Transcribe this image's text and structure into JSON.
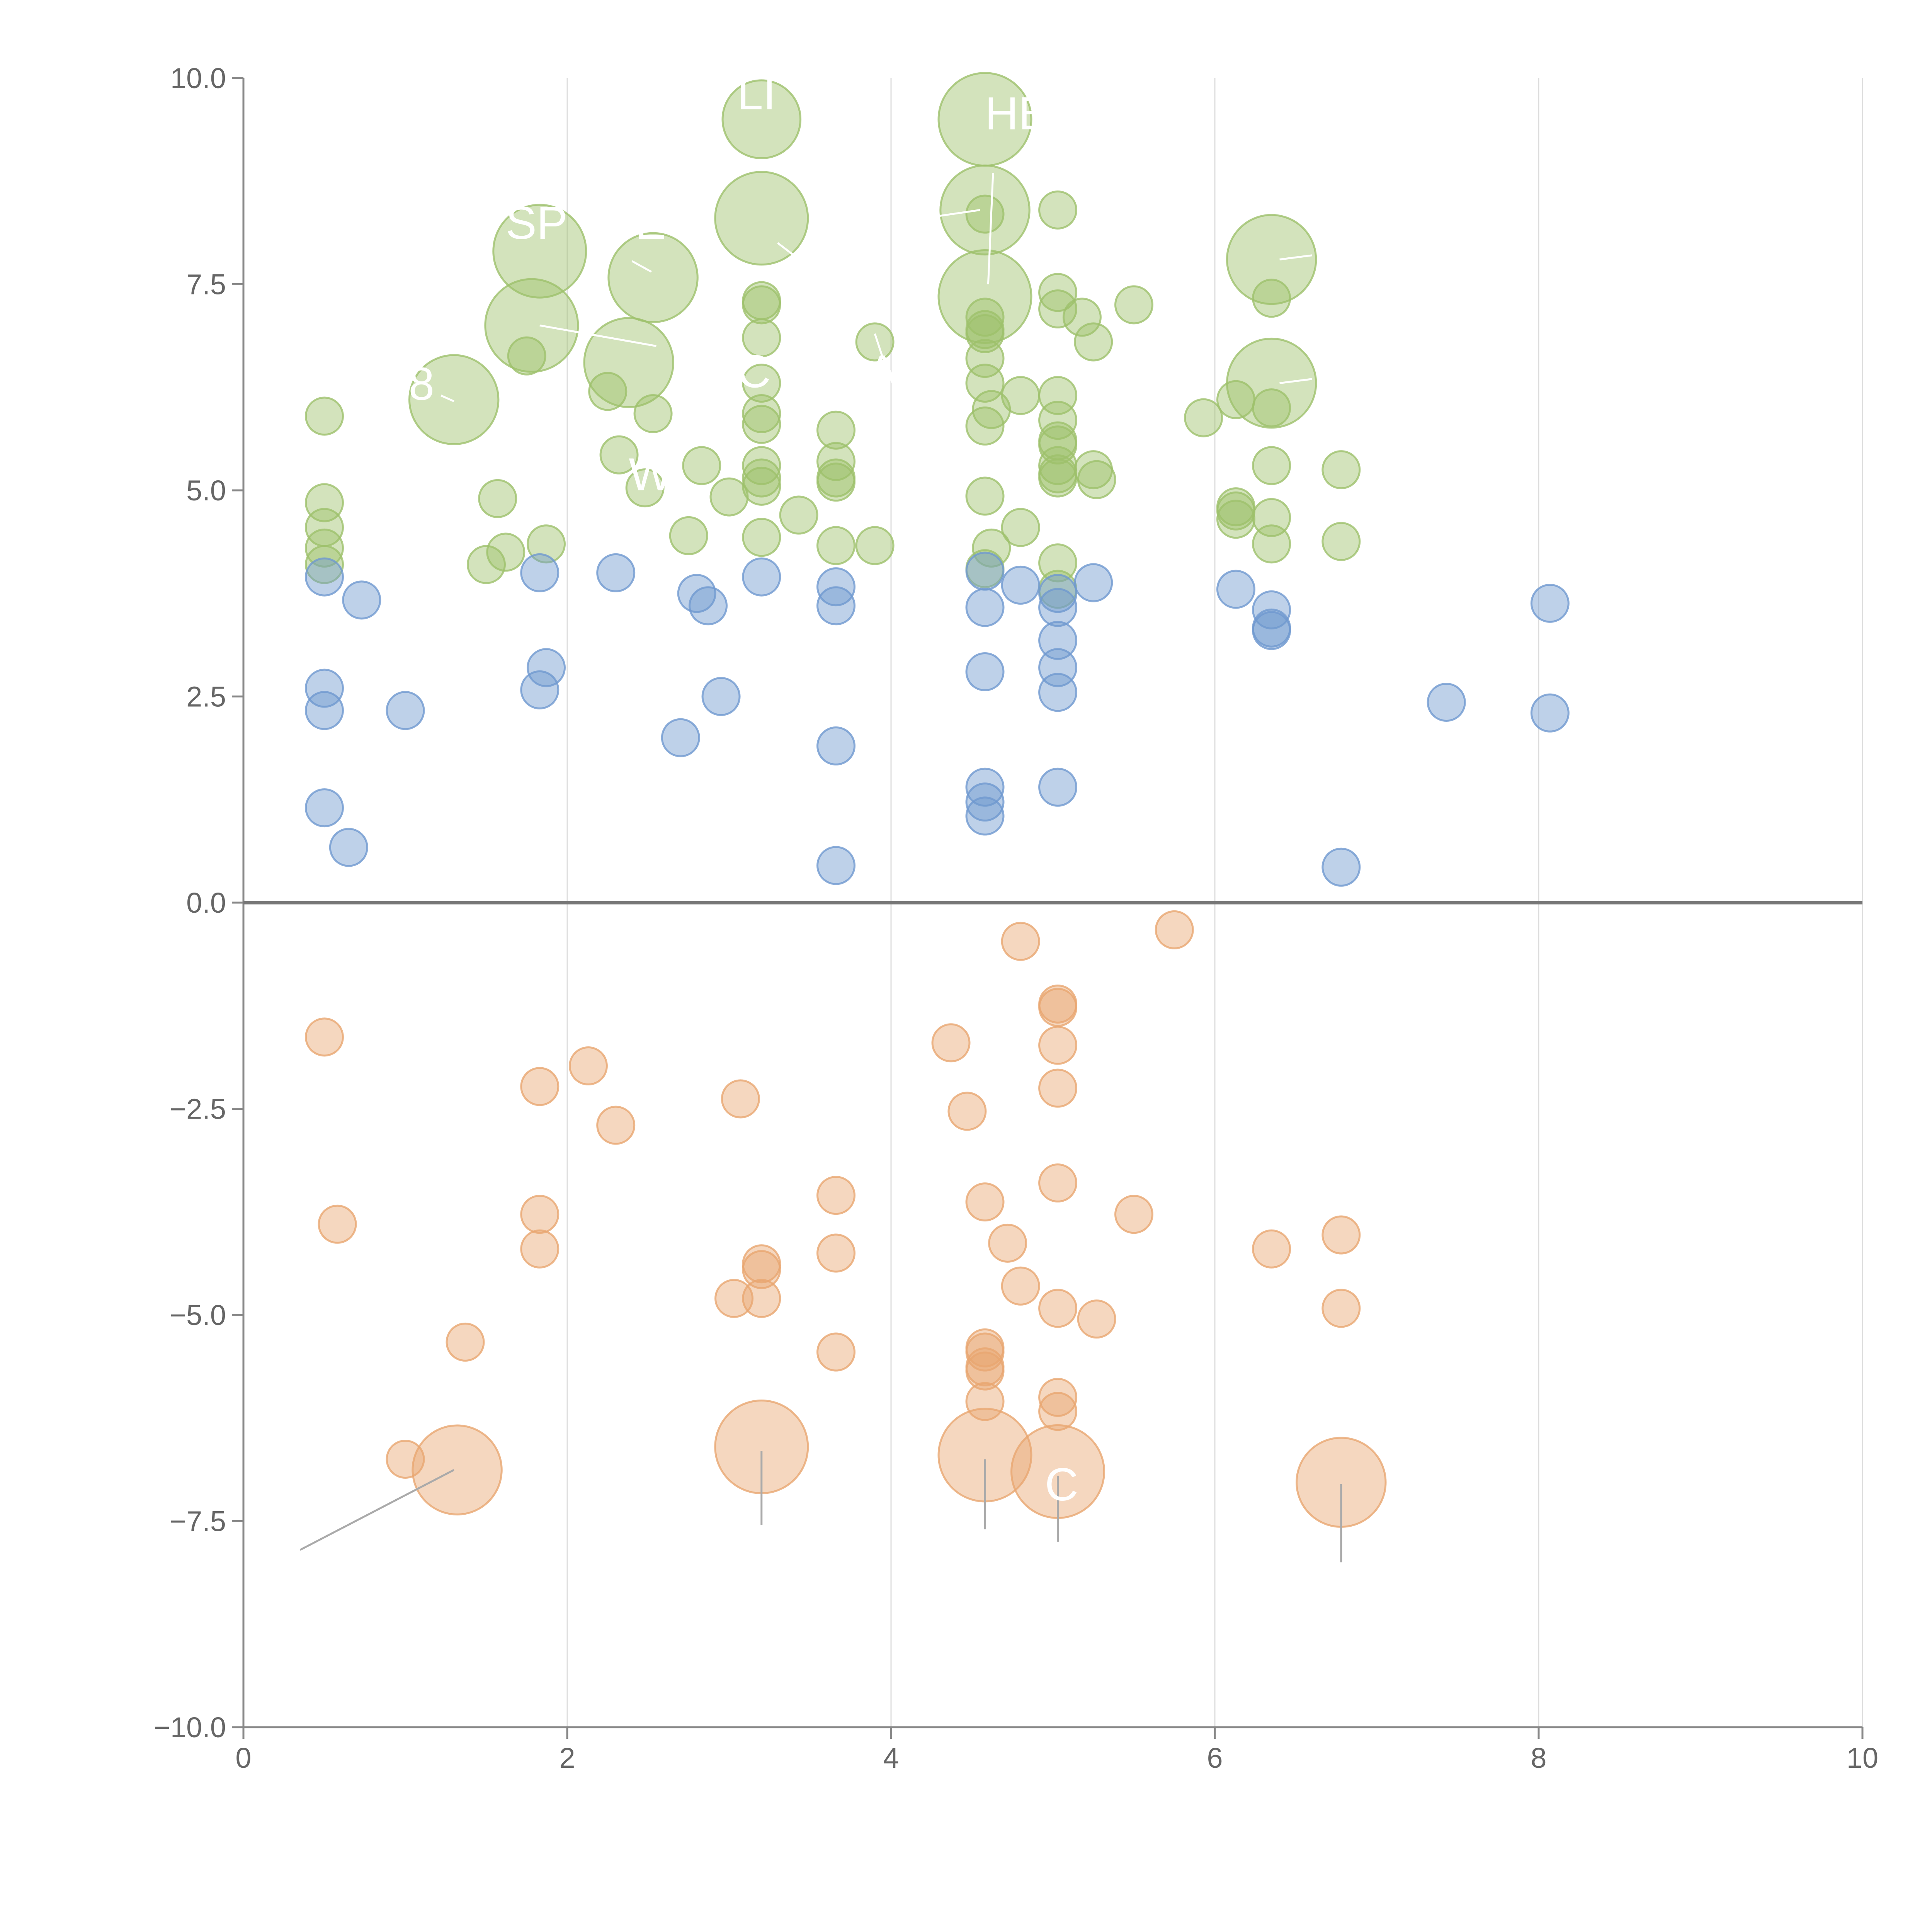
{
  "chart_data": {
    "type": "scatter",
    "title": "",
    "xlabel": "",
    "ylabel": "",
    "xlim": [
      0,
      10
    ],
    "ylim": [
      -10,
      10
    ],
    "xticks": [
      0,
      2,
      4,
      6,
      8,
      10
    ],
    "xtick_labels": [
      "0",
      "2",
      "4",
      "6",
      "8",
      "10"
    ],
    "yticks": [
      10,
      7.5,
      5,
      2.5,
      0,
      -2.5,
      -5,
      -7.5,
      -10
    ],
    "ytick_labels": [
      "10.0",
      "7.5",
      "5.0",
      "2.5",
      "0.0",
      "−2.5",
      "−5.0",
      "−7.5",
      "−10.0"
    ],
    "vertical_grid": true,
    "zero_line": true,
    "bubble_size_unit": "relative",
    "series": [
      {
        "name": "green",
        "color": "#9dc16b",
        "points": [
          [
            0.5,
            5.9,
            1
          ],
          [
            0.5,
            4.85,
            1
          ],
          [
            0.5,
            4.55,
            1
          ],
          [
            0.5,
            4.3,
            1
          ],
          [
            0.5,
            4.1,
            1
          ],
          [
            1.3,
            6.1,
            2.4
          ],
          [
            1.5,
            4.1,
            1
          ],
          [
            1.57,
            4.9,
            1
          ],
          [
            1.62,
            4.25,
            1
          ],
          [
            1.75,
            6.63,
            1
          ],
          [
            1.78,
            7.0,
            2.5
          ],
          [
            1.83,
            7.9,
            2.5
          ],
          [
            1.87,
            4.35,
            1
          ],
          [
            2.25,
            6.2,
            1
          ],
          [
            2.32,
            5.43,
            1
          ],
          [
            2.38,
            6.55,
            2.4
          ],
          [
            2.48,
            5.03,
            1
          ],
          [
            2.53,
            7.58,
            2.4
          ],
          [
            2.53,
            5.93,
            1
          ],
          [
            2.75,
            4.45,
            1
          ],
          [
            2.83,
            5.3,
            1
          ],
          [
            3.0,
            4.92,
            1
          ],
          [
            3.2,
            9.5,
            2.1
          ],
          [
            3.2,
            8.3,
            2.5
          ],
          [
            3.2,
            7.3,
            1
          ],
          [
            3.2,
            7.25,
            1
          ],
          [
            3.2,
            6.85,
            1
          ],
          [
            3.2,
            6.3,
            1
          ],
          [
            3.2,
            5.93,
            1
          ],
          [
            3.2,
            5.8,
            1
          ],
          [
            3.2,
            5.3,
            1
          ],
          [
            3.2,
            5.15,
            1
          ],
          [
            3.2,
            5.05,
            1
          ],
          [
            3.2,
            4.43,
            1
          ],
          [
            3.43,
            4.7,
            1
          ],
          [
            3.66,
            5.73,
            1
          ],
          [
            3.66,
            5.35,
            1
          ],
          [
            3.66,
            5.15,
            1
          ],
          [
            3.66,
            5.1,
            1
          ],
          [
            3.66,
            4.33,
            1
          ],
          [
            3.9,
            6.8,
            1
          ],
          [
            3.9,
            4.33,
            1
          ],
          [
            4.58,
            9.5,
            2.5
          ],
          [
            4.58,
            8.4,
            2.4
          ],
          [
            4.58,
            8.35,
            1
          ],
          [
            4.58,
            7.35,
            2.5
          ],
          [
            4.58,
            7.1,
            1
          ],
          [
            4.58,
            6.95,
            1
          ],
          [
            4.58,
            6.9,
            1
          ],
          [
            4.58,
            6.6,
            1
          ],
          [
            4.58,
            6.3,
            1
          ],
          [
            4.58,
            5.78,
            1
          ],
          [
            4.58,
            4.93,
            1
          ],
          [
            4.58,
            4.05,
            1
          ],
          [
            4.62,
            5.98,
            1
          ],
          [
            4.62,
            4.3,
            1
          ],
          [
            4.8,
            6.15,
            1
          ],
          [
            4.8,
            4.55,
            1
          ],
          [
            5.03,
            8.4,
            1
          ],
          [
            5.03,
            7.4,
            1
          ],
          [
            5.03,
            7.2,
            1
          ],
          [
            5.03,
            6.15,
            1
          ],
          [
            5.03,
            5.85,
            1
          ],
          [
            5.03,
            5.6,
            1
          ],
          [
            5.03,
            5.55,
            1
          ],
          [
            5.03,
            5.3,
            1
          ],
          [
            5.03,
            5.2,
            1
          ],
          [
            5.03,
            5.15,
            1
          ],
          [
            5.03,
            4.12,
            1
          ],
          [
            5.03,
            3.8,
            1
          ],
          [
            5.18,
            7.1,
            1
          ],
          [
            5.25,
            6.8,
            1
          ],
          [
            5.25,
            5.25,
            1
          ],
          [
            5.27,
            5.13,
            1
          ],
          [
            5.5,
            7.25,
            1
          ],
          [
            5.93,
            5.88,
            1
          ],
          [
            6.13,
            6.1,
            1
          ],
          [
            6.13,
            4.8,
            1
          ],
          [
            6.13,
            4.75,
            1
          ],
          [
            6.13,
            4.65,
            1
          ],
          [
            6.35,
            7.8,
            2.4
          ],
          [
            6.35,
            6.3,
            2.4
          ],
          [
            6.35,
            7.33,
            1
          ],
          [
            6.35,
            6.0,
            1
          ],
          [
            6.35,
            5.3,
            1
          ],
          [
            6.35,
            4.67,
            1
          ],
          [
            6.35,
            4.35,
            1
          ],
          [
            6.78,
            5.25,
            1
          ],
          [
            6.78,
            4.38,
            1
          ]
        ]
      },
      {
        "name": "blue",
        "color": "#6f98cf",
        "points": [
          [
            0.5,
            3.95,
            1
          ],
          [
            0.5,
            2.6,
            1
          ],
          [
            0.5,
            2.33,
            1
          ],
          [
            0.5,
            1.15,
            1
          ],
          [
            0.65,
            0.67,
            1
          ],
          [
            0.73,
            3.67,
            1
          ],
          [
            1.0,
            2.33,
            1
          ],
          [
            1.83,
            4.0,
            1
          ],
          [
            1.83,
            2.58,
            1
          ],
          [
            1.87,
            2.85,
            1
          ],
          [
            2.3,
            4.0,
            1
          ],
          [
            2.7,
            2.0,
            1
          ],
          [
            2.8,
            3.75,
            1
          ],
          [
            2.87,
            3.6,
            1
          ],
          [
            2.95,
            2.5,
            1
          ],
          [
            3.2,
            3.95,
            1
          ],
          [
            3.66,
            3.83,
            1
          ],
          [
            3.66,
            3.6,
            1
          ],
          [
            3.66,
            1.9,
            1
          ],
          [
            3.66,
            0.45,
            1
          ],
          [
            4.58,
            4.02,
            1
          ],
          [
            4.58,
            3.58,
            1
          ],
          [
            4.58,
            2.8,
            1
          ],
          [
            4.58,
            1.4,
            1
          ],
          [
            4.58,
            1.22,
            1
          ],
          [
            4.58,
            1.05,
            1
          ],
          [
            4.8,
            3.85,
            1
          ],
          [
            5.03,
            3.75,
            1
          ],
          [
            5.03,
            3.58,
            1
          ],
          [
            5.03,
            3.18,
            1
          ],
          [
            5.03,
            2.85,
            1
          ],
          [
            5.03,
            2.55,
            1
          ],
          [
            5.03,
            1.4,
            1
          ],
          [
            5.25,
            3.88,
            1
          ],
          [
            6.13,
            3.8,
            1
          ],
          [
            6.35,
            3.55,
            1
          ],
          [
            6.35,
            3.33,
            1
          ],
          [
            6.35,
            3.3,
            1
          ],
          [
            6.78,
            0.43,
            1
          ],
          [
            7.43,
            2.43,
            1
          ],
          [
            8.07,
            3.63,
            1
          ],
          [
            8.07,
            2.3,
            1
          ]
        ]
      },
      {
        "name": "orange",
        "color": "#e8a670",
        "points": [
          [
            0.5,
            -1.63,
            1
          ],
          [
            0.58,
            -3.9,
            1
          ],
          [
            1.0,
            -6.75,
            1
          ],
          [
            1.32,
            -6.88,
            2.4
          ],
          [
            1.37,
            -5.33,
            1
          ],
          [
            1.83,
            -2.23,
            1
          ],
          [
            1.83,
            -3.78,
            1
          ],
          [
            1.83,
            -4.2,
            1
          ],
          [
            2.13,
            -1.98,
            1
          ],
          [
            2.3,
            -2.7,
            1
          ],
          [
            3.03,
            -4.8,
            1
          ],
          [
            3.07,
            -2.38,
            1
          ],
          [
            3.2,
            -4.38,
            1
          ],
          [
            3.2,
            -4.45,
            1
          ],
          [
            3.2,
            -4.8,
            1
          ],
          [
            3.2,
            -6.6,
            2.5
          ],
          [
            3.66,
            -3.55,
            1
          ],
          [
            3.66,
            -4.25,
            1
          ],
          [
            3.66,
            -5.45,
            1
          ],
          [
            4.37,
            -1.7,
            1
          ],
          [
            4.47,
            -2.53,
            1
          ],
          [
            4.58,
            -3.63,
            1
          ],
          [
            4.58,
            -5.4,
            1
          ],
          [
            4.58,
            -5.45,
            1
          ],
          [
            4.58,
            -5.63,
            1
          ],
          [
            4.58,
            -5.68,
            1
          ],
          [
            4.58,
            -6.05,
            1
          ],
          [
            4.58,
            -6.7,
            2.5
          ],
          [
            4.72,
            -4.13,
            1
          ],
          [
            4.8,
            -0.47,
            1
          ],
          [
            4.8,
            -4.65,
            1
          ],
          [
            5.03,
            -1.23,
            1
          ],
          [
            5.03,
            -1.27,
            1
          ],
          [
            5.03,
            -1.73,
            1
          ],
          [
            5.03,
            -2.25,
            1
          ],
          [
            5.03,
            -3.4,
            1
          ],
          [
            5.03,
            -4.92,
            1
          ],
          [
            5.03,
            -6.0,
            1
          ],
          [
            5.03,
            -6.17,
            1
          ],
          [
            5.03,
            -6.9,
            2.5
          ],
          [
            5.27,
            -5.05,
            1
          ],
          [
            5.5,
            -3.78,
            1
          ],
          [
            5.75,
            -0.33,
            1
          ],
          [
            6.35,
            -4.2,
            1
          ],
          [
            6.78,
            -4.03,
            1
          ],
          [
            6.78,
            -4.92,
            1
          ],
          [
            6.78,
            -7.03,
            2.4
          ]
        ]
      }
    ],
    "annotations": [
      {
        "text": "LI",
        "x": 3.05,
        "y": 9.62
      },
      {
        "text": "HB",
        "x": 4.58,
        "y": 9.38
      },
      {
        "text": "SP",
        "x": 1.62,
        "y": 8.05
      },
      {
        "text": "E",
        "x": 2.42,
        "y": 8.05
      },
      {
        "text": "8",
        "x": 1.02,
        "y": 6.1
      },
      {
        "text": "C",
        "x": 3.05,
        "y": 6.25
      },
      {
        "text": "A",
        "x": 3.85,
        "y": 6.25
      },
      {
        "text": "W",
        "x": 2.38,
        "y": 5.0
      },
      {
        "text": "C",
        "x": 4.95,
        "y": -7.25
      }
    ]
  }
}
